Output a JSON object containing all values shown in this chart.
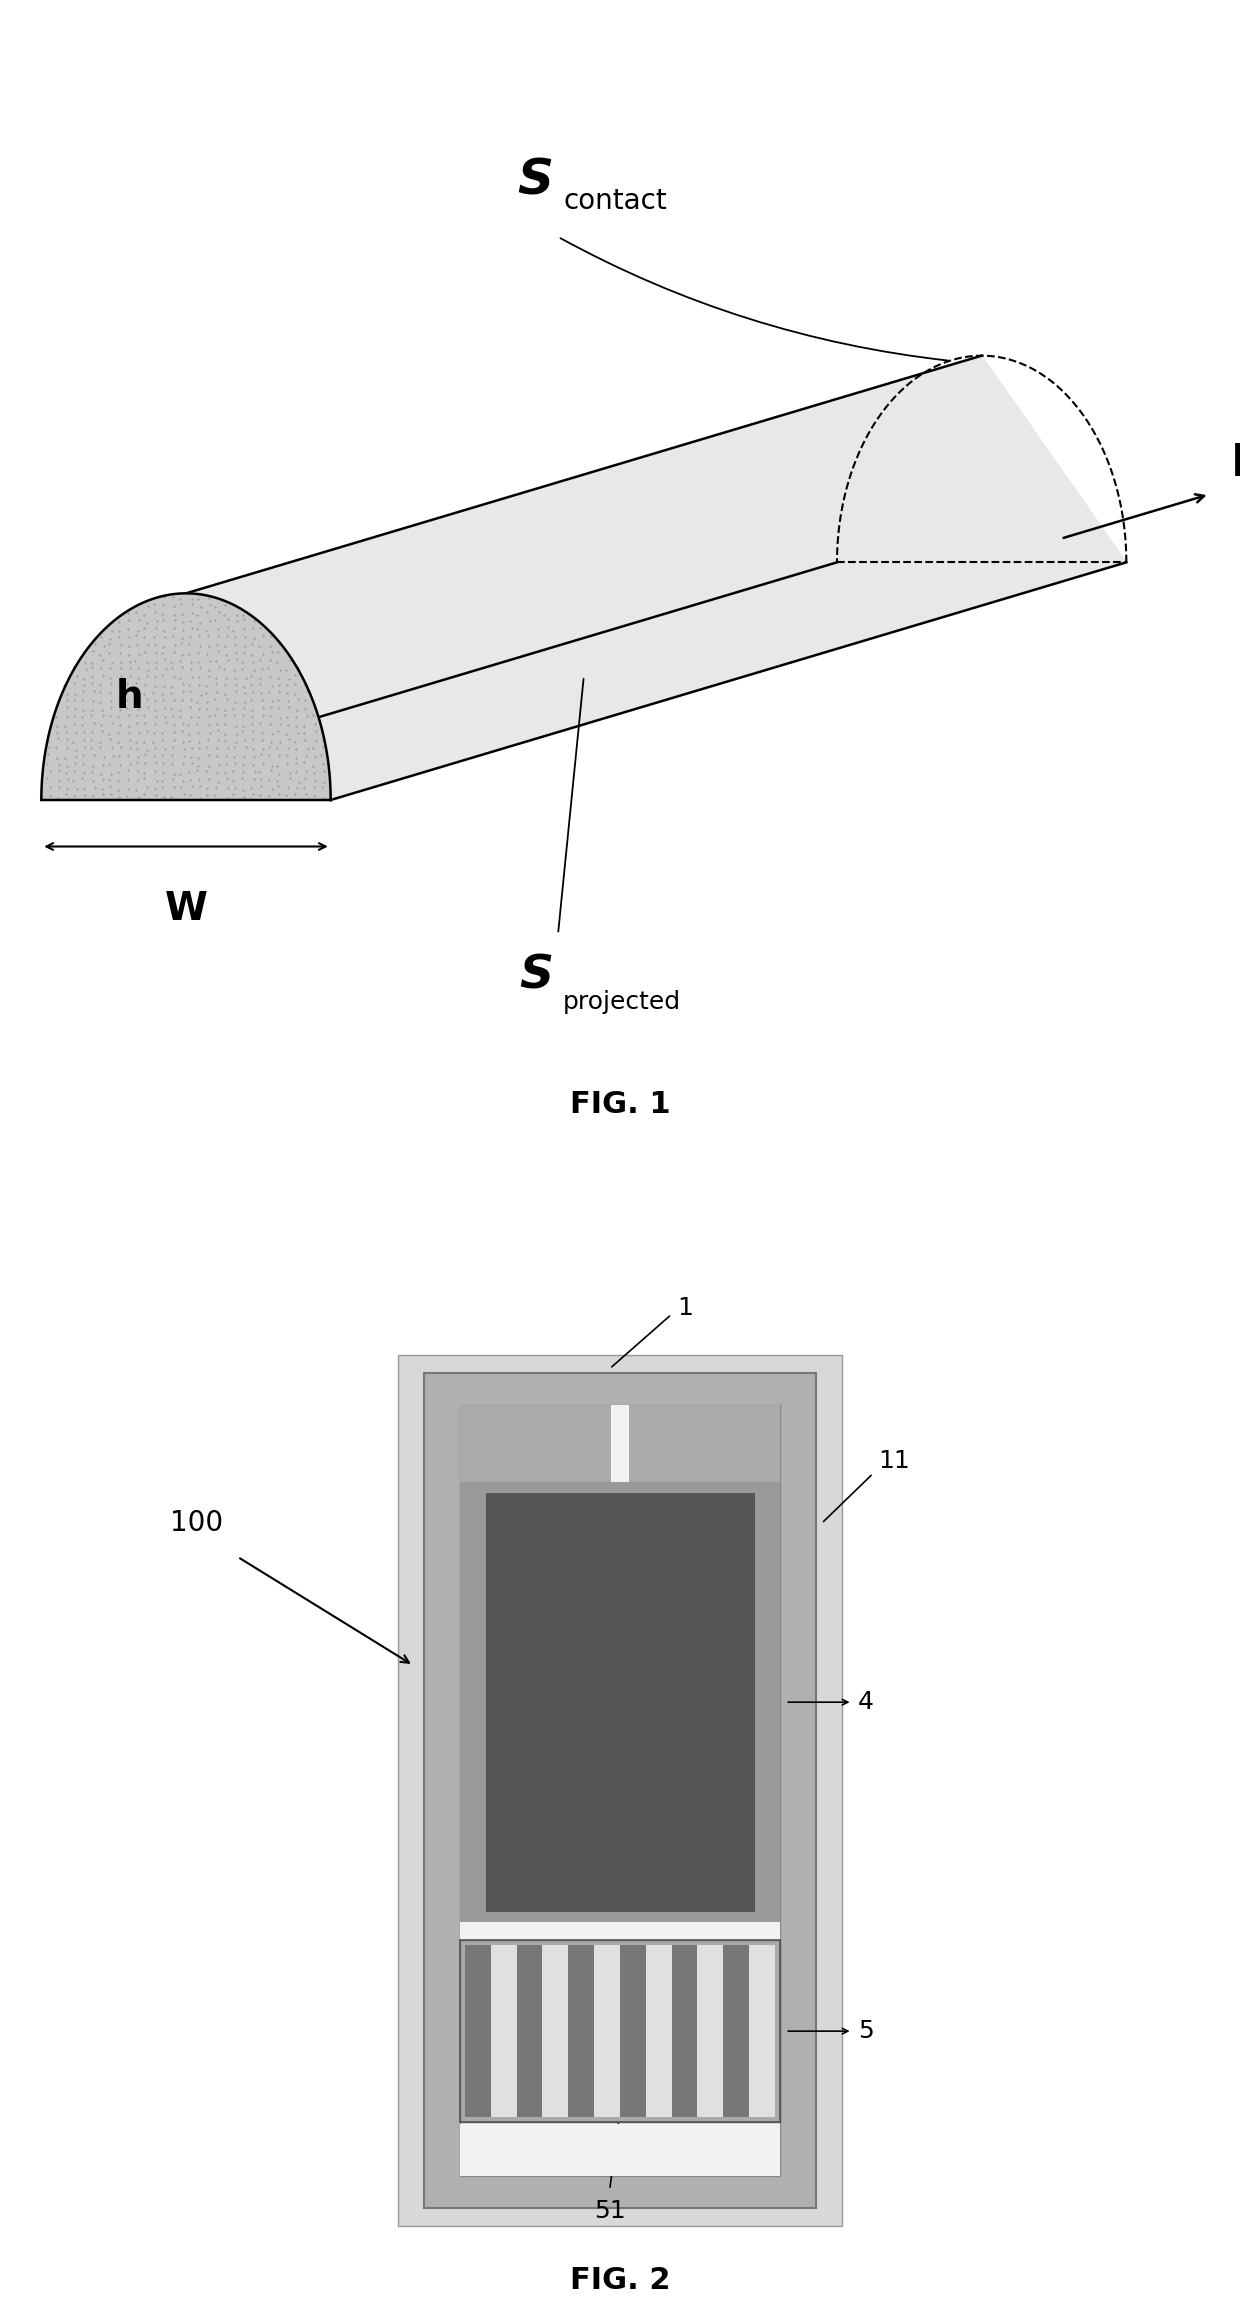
{
  "fig1_title": "FIG. 1",
  "fig2_title": "FIG. 2",
  "bg_color": "#ffffff",
  "label_S_contact": "S",
  "label_contact_sub": "contact",
  "label_S_projected": "S",
  "label_projected_sub": "projected",
  "label_L": "L",
  "label_W": "W",
  "label_h": "h",
  "label_100": "100",
  "label_1": "1",
  "label_11": "11",
  "label_4": "4",
  "label_5": "5",
  "label_51": "51",
  "cross_fill": "#c8c8c8",
  "cross_stipple": "#909090",
  "tube_top_fill": "#e8e8e8",
  "tube_bot_fill": "#d0d0d0",
  "fig2_substrate": "#d0d0d0",
  "fig2_chip_border": "#aaaaaa",
  "fig2_white": "#f5f5f5",
  "fig2_medium_gray": "#888888",
  "fig2_dark_channel": "#555555",
  "fig2_finger_light": "#cccccc",
  "fig2_finger_dark": "#888888"
}
